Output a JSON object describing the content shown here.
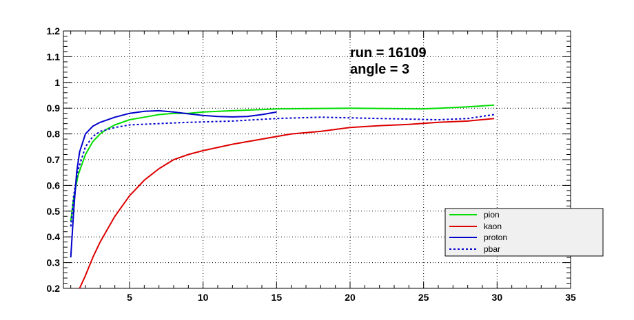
{
  "chart_data": {
    "type": "line",
    "title": "",
    "xlabel": "",
    "ylabel": "",
    "xlim": [
      0.5,
      35
    ],
    "ylim": [
      0.2,
      1.2
    ],
    "xticks": [
      5,
      10,
      15,
      20,
      25,
      30,
      35
    ],
    "yticks": [
      0.2,
      0.3,
      0.4,
      0.5,
      0.6,
      0.7,
      0.8,
      0.9,
      1,
      1.1,
      1.2
    ],
    "xtick_labels": [
      "5",
      "10",
      "15",
      "20",
      "25",
      "30",
      "35"
    ],
    "ytick_labels": [
      "0.2",
      "0.3",
      "0.4",
      "0.5",
      "0.6",
      "0.7",
      "0.8",
      "0.9",
      "1",
      "1.1",
      "1.2"
    ],
    "grid": true,
    "legend_position": "bottom-right",
    "annotations": [
      "run    = 16109",
      "angle = 3"
    ],
    "series": [
      {
        "name": "pion",
        "color": "#00dd00",
        "dashed": false,
        "points": [
          [
            1.0,
            0.46
          ],
          [
            1.2,
            0.55
          ],
          [
            1.5,
            0.64
          ],
          [
            2.0,
            0.72
          ],
          [
            2.5,
            0.77
          ],
          [
            3.0,
            0.8
          ],
          [
            3.5,
            0.82
          ],
          [
            4.0,
            0.835
          ],
          [
            5.0,
            0.855
          ],
          [
            6.0,
            0.865
          ],
          [
            7.0,
            0.875
          ],
          [
            8.0,
            0.88
          ],
          [
            9.0,
            0.88
          ],
          [
            10.0,
            0.885
          ],
          [
            12.0,
            0.89
          ],
          [
            15.0,
            0.897
          ],
          [
            20.0,
            0.9
          ],
          [
            25.0,
            0.897
          ],
          [
            28.0,
            0.905
          ],
          [
            29.8,
            0.912
          ]
        ]
      },
      {
        "name": "kaon",
        "color": "#dd0000",
        "dashed": false,
        "points": [
          [
            1.6,
            0.2
          ],
          [
            2.0,
            0.25
          ],
          [
            2.5,
            0.32
          ],
          [
            3.0,
            0.38
          ],
          [
            3.5,
            0.43
          ],
          [
            4.0,
            0.48
          ],
          [
            5.0,
            0.56
          ],
          [
            6.0,
            0.62
          ],
          [
            7.0,
            0.665
          ],
          [
            8.0,
            0.7
          ],
          [
            9.0,
            0.72
          ],
          [
            10.0,
            0.735
          ],
          [
            12.0,
            0.76
          ],
          [
            14.0,
            0.78
          ],
          [
            16.0,
            0.8
          ],
          [
            18.0,
            0.81
          ],
          [
            20.0,
            0.825
          ],
          [
            22.0,
            0.832
          ],
          [
            24.0,
            0.837
          ],
          [
            26.0,
            0.845
          ],
          [
            28.0,
            0.85
          ],
          [
            29.8,
            0.86
          ]
        ]
      },
      {
        "name": "proton",
        "color": "#0000cc",
        "dashed": false,
        "points": [
          [
            1.0,
            0.32
          ],
          [
            1.2,
            0.5
          ],
          [
            1.4,
            0.65
          ],
          [
            1.6,
            0.73
          ],
          [
            2.0,
            0.8
          ],
          [
            2.5,
            0.83
          ],
          [
            3.0,
            0.845
          ],
          [
            4.0,
            0.865
          ],
          [
            5.0,
            0.88
          ],
          [
            6.0,
            0.888
          ],
          [
            7.0,
            0.89
          ],
          [
            8.0,
            0.885
          ],
          [
            9.0,
            0.878
          ],
          [
            10.0,
            0.872
          ],
          [
            11.0,
            0.868
          ],
          [
            12.0,
            0.866
          ],
          [
            13.0,
            0.868
          ],
          [
            14.0,
            0.875
          ],
          [
            15.0,
            0.885
          ]
        ]
      },
      {
        "name": "pbar",
        "color": "#0000cc",
        "dashed": true,
        "points": [
          [
            1.0,
            0.44
          ],
          [
            1.2,
            0.56
          ],
          [
            1.5,
            0.66
          ],
          [
            2.0,
            0.75
          ],
          [
            2.5,
            0.79
          ],
          [
            3.0,
            0.81
          ],
          [
            4.0,
            0.825
          ],
          [
            5.0,
            0.835
          ],
          [
            7.0,
            0.84
          ],
          [
            9.0,
            0.845
          ],
          [
            12.0,
            0.85
          ],
          [
            15.0,
            0.86
          ],
          [
            18.0,
            0.865
          ],
          [
            22.0,
            0.86
          ],
          [
            26.0,
            0.855
          ],
          [
            28.0,
            0.86
          ],
          [
            29.8,
            0.875
          ]
        ]
      }
    ]
  }
}
